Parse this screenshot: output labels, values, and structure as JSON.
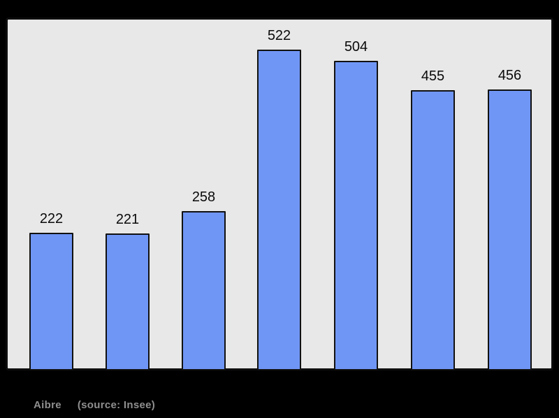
{
  "canvas": {
    "background_color": "#000000"
  },
  "chart_data": {
    "type": "bar",
    "values": [
      222,
      221,
      258,
      522,
      504,
      455,
      456
    ],
    "value_labels": [
      "222",
      "221",
      "258",
      "522",
      "504",
      "455",
      "456"
    ],
    "title": "",
    "xlabel": "",
    "ylabel": "",
    "ylim": [
      0,
      575
    ],
    "grid": false,
    "legend": null,
    "x_tick_labels_visible": false,
    "bar_color": "#7096f5",
    "bar_border_color": "#111111",
    "plot_background_color": "#e8e8e8",
    "frame_border_color": "#0d0d0d",
    "value_label_color": "#0a0a0a"
  },
  "caption": {
    "name": "Aibre",
    "source": "(source: Insee)",
    "text_color": "#8f8f8f"
  }
}
